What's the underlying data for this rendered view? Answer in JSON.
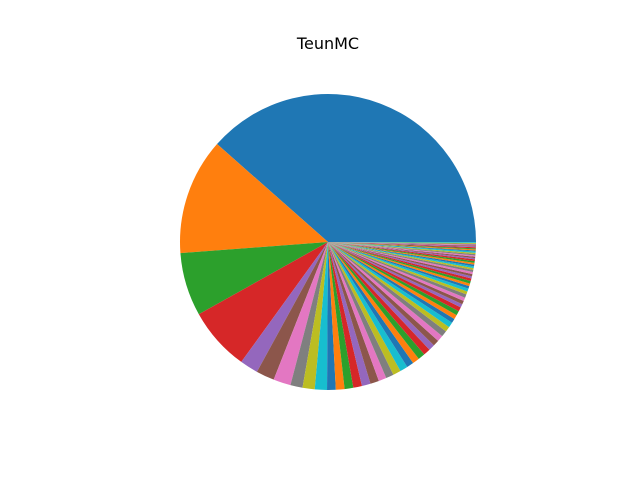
{
  "chart_data": {
    "type": "pie",
    "title": "TeunMC",
    "start_angle_deg": 0,
    "direction": "counterclockwise",
    "values": [
      40.6,
      13.4,
      7.3,
      7.3,
      2.1,
      2.1,
      2.0,
      1.4,
      1.4,
      1.4,
      1.0,
      1.0,
      1.0,
      1.0,
      1.0,
      1.0,
      0.9,
      0.9,
      0.9,
      0.9,
      0.8,
      0.8,
      0.8,
      0.8,
      0.7,
      0.7,
      0.7,
      0.7,
      0.6,
      0.6,
      0.5,
      0.5,
      0.5,
      0.5,
      0.4,
      0.4,
      0.4,
      0.4,
      0.35,
      0.35,
      0.3,
      0.3,
      0.3,
      0.3,
      0.25,
      0.25,
      0.25,
      0.25,
      0.2,
      0.2,
      0.2,
      0.2,
      0.2,
      0.2,
      0.15,
      0.15,
      0.15,
      0.15,
      0.15,
      0.15,
      0.12,
      0.12,
      0.12,
      0.12,
      0.1,
      0.1,
      0.1,
      0.1,
      0.1,
      0.1
    ],
    "colors": [
      "#1f77b4",
      "#ff7f0e",
      "#2ca02c",
      "#d62728",
      "#9467bd",
      "#8c564b",
      "#e377c2",
      "#7f7f7f",
      "#bcbd22",
      "#17becf"
    ]
  }
}
